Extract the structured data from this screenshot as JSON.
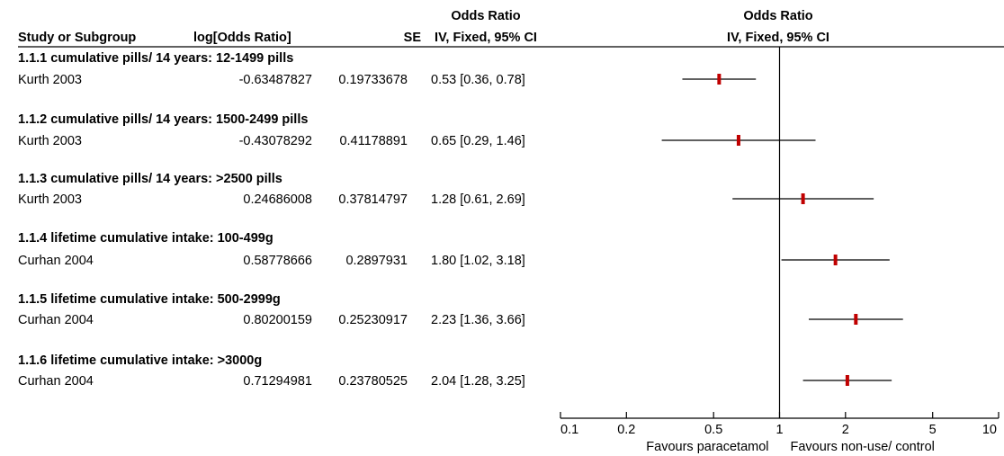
{
  "header": {
    "study_col": "Study or Subgroup",
    "logor_col": "log[Odds Ratio]",
    "se_col": "SE",
    "or_col_top": "Odds Ratio",
    "or_col_bottom": "IV, Fixed, 95% CI",
    "plot_col_top": "Odds Ratio",
    "plot_col_bottom": "IV, Fixed, 95% CI"
  },
  "subgroups": [
    {
      "title": "1.1.1 cumulative pills/ 14 years: 12-1499 pills",
      "study": "Kurth 2003",
      "logor": "-0.63487827",
      "se": "0.19733678",
      "ci_text": "0.53 [0.36, 0.78]"
    },
    {
      "title": "1.1.2 cumulative pills/ 14 years: 1500-2499 pills",
      "study": "Kurth 2003",
      "logor": "-0.43078292",
      "se": "0.41178891",
      "ci_text": "0.65 [0.29, 1.46]"
    },
    {
      "title": "1.1.3 cumulative pills/ 14 years: >2500 pills",
      "study": "Kurth 2003",
      "logor": "0.24686008",
      "se": "0.37814797",
      "ci_text": "1.28 [0.61, 2.69]"
    },
    {
      "title": "1.1.4 lifetime cumulative intake: 100-499g",
      "study": "Curhan 2004",
      "logor": "0.58778666",
      "se": "0.2897931",
      "ci_text": "1.80 [1.02, 3.18]"
    },
    {
      "title": "1.1.5 lifetime cumulative intake: 500-2999g",
      "study": "Curhan 2004",
      "logor": "0.80200159",
      "se": "0.25230917",
      "ci_text": "2.23 [1.36, 3.66]"
    },
    {
      "title": "1.1.6 lifetime cumulative intake: >3000g",
      "study": "Curhan 2004",
      "logor": "0.71294981",
      "se": "0.23780525",
      "ci_text": "2.04 [1.28, 3.25]"
    }
  ],
  "chart_data": {
    "type": "forest",
    "scale": "log",
    "xlim": [
      0.1,
      10
    ],
    "null_line": 1,
    "ticks": [
      {
        "value": 0.1,
        "label": "0.1"
      },
      {
        "value": 0.2,
        "label": "0.2"
      },
      {
        "value": 0.5,
        "label": "0.5"
      },
      {
        "value": 1,
        "label": "1"
      },
      {
        "value": 2,
        "label": "2"
      },
      {
        "value": 5,
        "label": "5"
      },
      {
        "value": 10,
        "label": "10"
      }
    ],
    "favours_left": "Favours paracetamol",
    "favours_right": "Favours non-use/ control",
    "estimate_color": "#c00000",
    "points": [
      {
        "or": 0.53,
        "lower": 0.36,
        "upper": 0.78
      },
      {
        "or": 0.65,
        "lower": 0.29,
        "upper": 1.46
      },
      {
        "or": 1.28,
        "lower": 0.61,
        "upper": 2.69
      },
      {
        "or": 1.8,
        "lower": 1.02,
        "upper": 3.18
      },
      {
        "or": 2.23,
        "lower": 1.36,
        "upper": 3.66
      },
      {
        "or": 2.04,
        "lower": 1.28,
        "upper": 3.25
      }
    ]
  }
}
